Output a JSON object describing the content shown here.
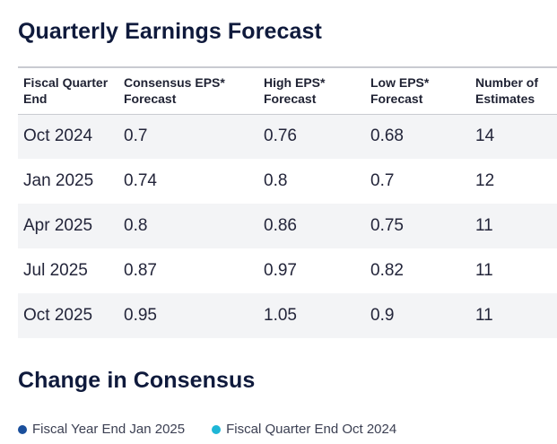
{
  "earnings_forecast": {
    "title": "Quarterly Earnings Forecast",
    "columns": [
      "Fiscal Quarter End",
      "Consensus EPS* Forecast",
      "High EPS* Forecast",
      "Low EPS* Forecast",
      "Number of Estimates"
    ],
    "rows": [
      [
        "Oct 2024",
        "0.7",
        "0.76",
        "0.68",
        "14"
      ],
      [
        "Jan 2025",
        "0.74",
        "0.8",
        "0.7",
        "12"
      ],
      [
        "Apr 2025",
        "0.8",
        "0.86",
        "0.75",
        "11"
      ],
      [
        "Jul 2025",
        "0.87",
        "0.97",
        "0.82",
        "11"
      ],
      [
        "Oct 2025",
        "0.95",
        "1.05",
        "0.9",
        "11"
      ]
    ]
  },
  "consensus_change": {
    "title": "Change in Consensus",
    "legend": [
      {
        "label": "Fiscal Year End Jan 2025",
        "color": "#1a4f9c"
      },
      {
        "label": "Fiscal Quarter End Oct 2024",
        "color": "#1eb6d6"
      }
    ]
  }
}
